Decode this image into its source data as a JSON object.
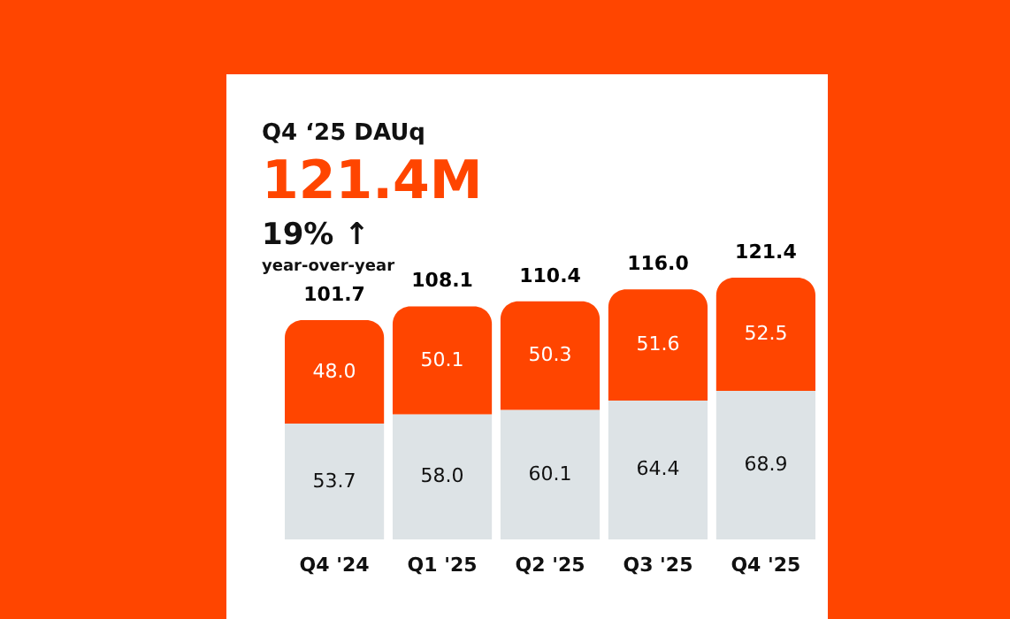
{
  "chart_data": {
    "type": "bar",
    "title": "Q4 ‘25 DAUq",
    "subtitle": "121.4M",
    "annotations": [
      "19% ↑",
      "year-over-year"
    ],
    "categories": [
      "Q4 '24",
      "Q1 '25",
      "Q2 '25",
      "Q3 '25",
      "Q4 '25"
    ],
    "stacked": true,
    "series": [
      {
        "color": "#dde3e6",
        "values": [
          53.7,
          58.0,
          60.1,
          64.4,
          68.9
        ],
        "value_labels": [
          "53.7",
          "58.0",
          "60.1",
          "64.4",
          "68.9"
        ]
      },
      {
        "color": "#ff4500",
        "values": [
          48.0,
          50.1,
          50.3,
          51.6,
          52.5
        ],
        "value_labels": [
          "48.0",
          "50.1",
          "50.3",
          "51.6",
          "52.5"
        ]
      }
    ],
    "totals": [
      "101.7",
      "108.1",
      "110.4",
      "116.0",
      "121.4"
    ]
  }
}
